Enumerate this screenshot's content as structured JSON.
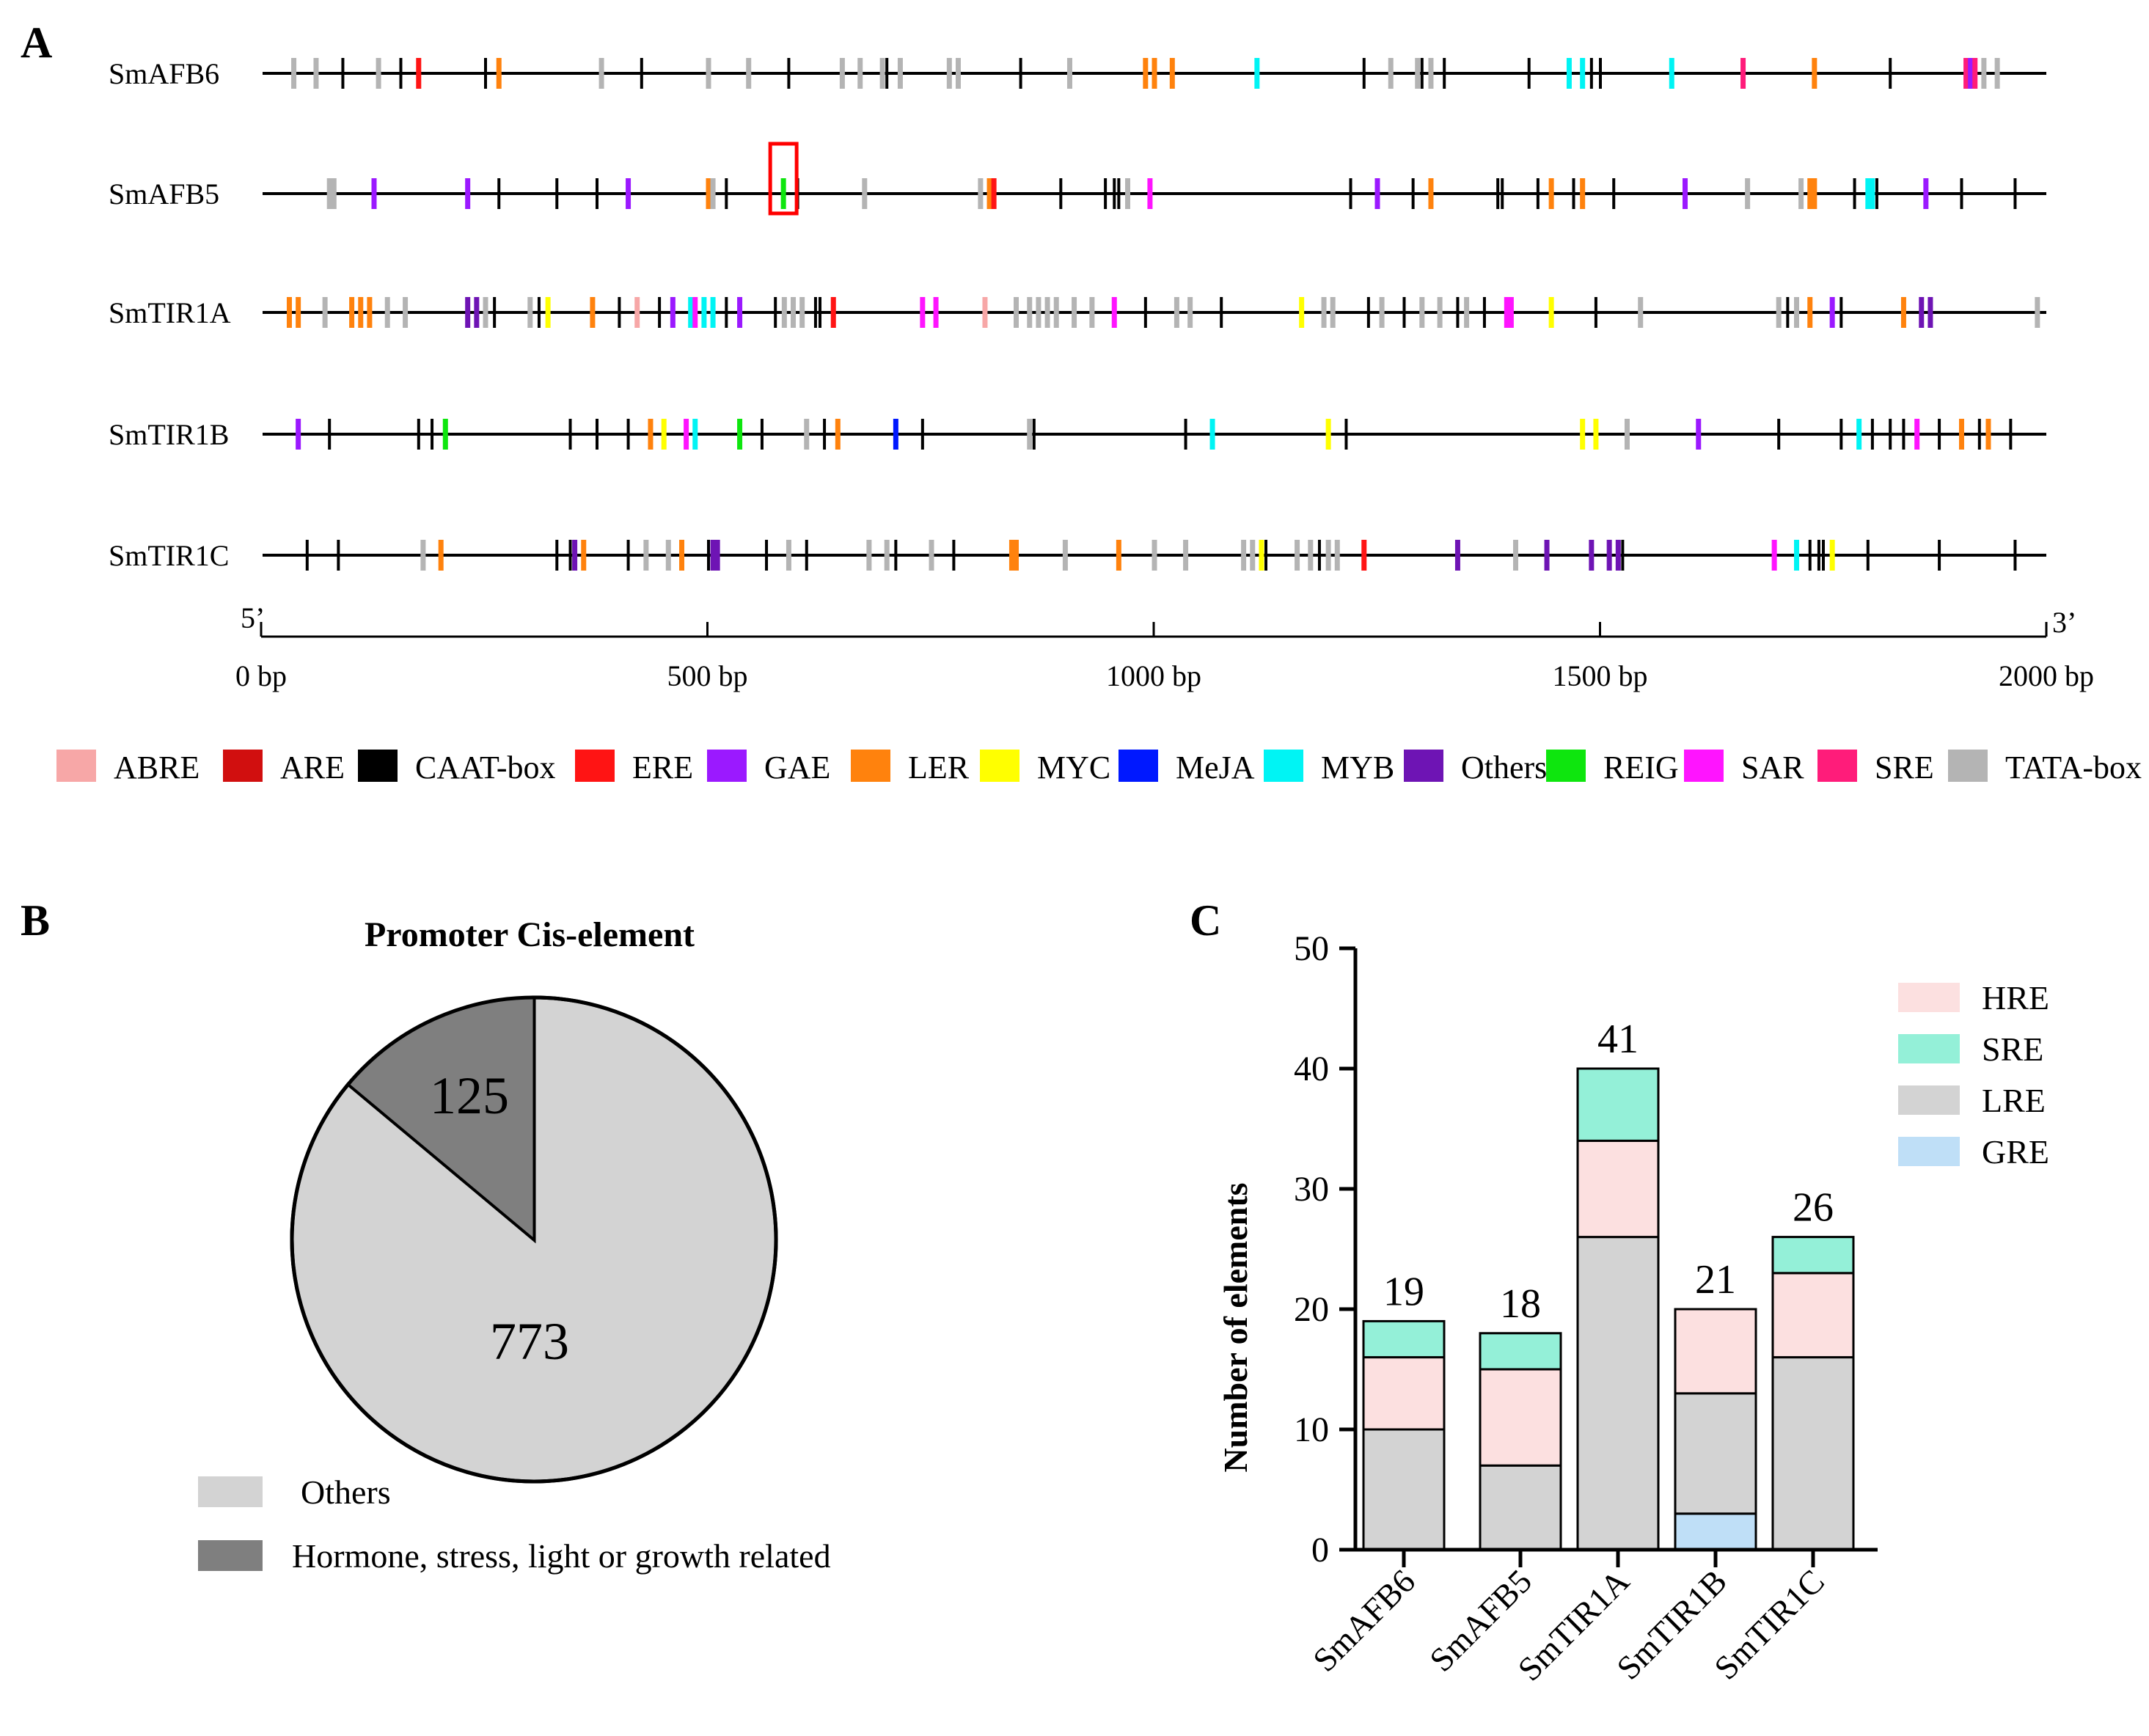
{
  "panel_letters": {
    "a": "A",
    "b": "B",
    "c": "C"
  },
  "element_colors": {
    "ABRE": "#f7a7a7",
    "ARE": "#d10f0f",
    "CAAT-box": "#000000",
    "ERE": "#ff1414",
    "GAE": "#9b19ff",
    "LER": "#ff820d",
    "MYC": "#ffff00",
    "MeJA": "#0018ff",
    "MYB": "#00f4f4",
    "Others": "#6e14b4",
    "REIG": "#0ee60e",
    "SAR": "#ff14ff",
    "SRE": "#ff1c7a",
    "TATA-box": "#b4b4b4"
  },
  "panel_a": {
    "axis": {
      "start_label": "5’",
      "end_label": "3’",
      "max_bp": 2000,
      "tick_labels": [
        "0 bp",
        "500 bp",
        "1000 bp",
        "1500 bp",
        "2000 bp"
      ],
      "tick_values": [
        0,
        500,
        1000,
        1500,
        2000
      ]
    },
    "legend": [
      "ABRE",
      "ARE",
      "CAAT-box",
      "ERE",
      "GAE",
      "LER",
      "MYC",
      "MeJA",
      "MYB",
      "Others",
      "REIG",
      "SAR",
      "SRE",
      "TATA-box"
    ],
    "highlight": {
      "gene": "SmAFB5",
      "bp": 584
    },
    "genes": [
      {
        "name": "SmAFB6",
        "length": 2000,
        "elements": [
          [
            35,
            "TATA-box"
          ],
          [
            60,
            "TATA-box"
          ],
          [
            90,
            "CAAT-box"
          ],
          [
            130,
            "TATA-box"
          ],
          [
            155,
            "CAAT-box"
          ],
          [
            175,
            "ERE"
          ],
          [
            250,
            "CAAT-box"
          ],
          [
            265,
            "LER"
          ],
          [
            380,
            "TATA-box"
          ],
          [
            425,
            "CAAT-box"
          ],
          [
            500,
            "TATA-box"
          ],
          [
            545,
            "TATA-box"
          ],
          [
            590,
            "CAAT-box"
          ],
          [
            650,
            "TATA-box"
          ],
          [
            670,
            "TATA-box"
          ],
          [
            695,
            "TATA-box"
          ],
          [
            700,
            "CAAT-box"
          ],
          [
            715,
            "TATA-box"
          ],
          [
            770,
            "TATA-box"
          ],
          [
            780,
            "TATA-box"
          ],
          [
            850,
            "CAAT-box"
          ],
          [
            905,
            "TATA-box"
          ],
          [
            990,
            "LER"
          ],
          [
            1000,
            "LER"
          ],
          [
            1020,
            "LER"
          ],
          [
            1115,
            "MYB"
          ],
          [
            1235,
            "CAAT-box"
          ],
          [
            1265,
            "TATA-box"
          ],
          [
            1295,
            "TATA-box"
          ],
          [
            1300,
            "CAAT-box"
          ],
          [
            1310,
            "TATA-box"
          ],
          [
            1325,
            "CAAT-box"
          ],
          [
            1420,
            "CAAT-box"
          ],
          [
            1465,
            "MYB"
          ],
          [
            1480,
            "MYB"
          ],
          [
            1490,
            "CAAT-box"
          ],
          [
            1500,
            "CAAT-box"
          ],
          [
            1580,
            "MYB"
          ],
          [
            1660,
            "SRE"
          ],
          [
            1740,
            "LER"
          ],
          [
            1825,
            "CAAT-box"
          ],
          [
            1910,
            "SRE"
          ],
          [
            1915,
            "GAE"
          ],
          [
            1920,
            "SRE"
          ],
          [
            1930,
            "TATA-box"
          ],
          [
            1945,
            "TATA-box"
          ]
        ]
      },
      {
        "name": "SmAFB5",
        "length": 2000,
        "elements": [
          [
            75,
            "TATA-box"
          ],
          [
            80,
            "TATA-box"
          ],
          [
            125,
            "GAE"
          ],
          [
            230,
            "GAE"
          ],
          [
            265,
            "CAAT-box"
          ],
          [
            330,
            "CAAT-box"
          ],
          [
            375,
            "CAAT-box"
          ],
          [
            410,
            "GAE"
          ],
          [
            500,
            "LER"
          ],
          [
            505,
            "TATA-box"
          ],
          [
            520,
            "CAAT-box"
          ],
          [
            584,
            "REIG"
          ],
          [
            600,
            "CAAT-box"
          ],
          [
            675,
            "TATA-box"
          ],
          [
            805,
            "TATA-box"
          ],
          [
            815,
            "LER"
          ],
          [
            820,
            "ERE"
          ],
          [
            895,
            "CAAT-box"
          ],
          [
            945,
            "CAAT-box"
          ],
          [
            955,
            "CAAT-box"
          ],
          [
            960,
            "CAAT-box"
          ],
          [
            970,
            "TATA-box"
          ],
          [
            995,
            "SAR"
          ],
          [
            1220,
            "CAAT-box"
          ],
          [
            1250,
            "GAE"
          ],
          [
            1290,
            "CAAT-box"
          ],
          [
            1310,
            "LER"
          ],
          [
            1385,
            "CAAT-box"
          ],
          [
            1390,
            "CAAT-box"
          ],
          [
            1430,
            "CAAT-box"
          ],
          [
            1445,
            "LER"
          ],
          [
            1470,
            "CAAT-box"
          ],
          [
            1480,
            "LER"
          ],
          [
            1515,
            "CAAT-box"
          ],
          [
            1595,
            "GAE"
          ],
          [
            1665,
            "TATA-box"
          ],
          [
            1725,
            "TATA-box"
          ],
          [
            1735,
            "LER"
          ],
          [
            1740,
            "LER"
          ],
          [
            1785,
            "CAAT-box"
          ],
          [
            1800,
            "MYB"
          ],
          [
            1805,
            "MYB"
          ],
          [
            1810,
            "CAAT-box"
          ],
          [
            1865,
            "GAE"
          ],
          [
            1905,
            "CAAT-box"
          ],
          [
            1965,
            "CAAT-box"
          ]
        ]
      },
      {
        "name": "SmTIR1A",
        "length": 2000,
        "elements": [
          [
            30,
            "LER"
          ],
          [
            40,
            "LER"
          ],
          [
            70,
            "TATA-box"
          ],
          [
            100,
            "LER"
          ],
          [
            110,
            "LER"
          ],
          [
            120,
            "LER"
          ],
          [
            140,
            "TATA-box"
          ],
          [
            160,
            "TATA-box"
          ],
          [
            230,
            "Others"
          ],
          [
            240,
            "Others"
          ],
          [
            250,
            "TATA-box"
          ],
          [
            260,
            "CAAT-box"
          ],
          [
            300,
            "TATA-box"
          ],
          [
            310,
            "CAAT-box"
          ],
          [
            320,
            "MYC"
          ],
          [
            370,
            "LER"
          ],
          [
            400,
            "CAAT-box"
          ],
          [
            420,
            "ABRE"
          ],
          [
            445,
            "CAAT-box"
          ],
          [
            460,
            "GAE"
          ],
          [
            480,
            "MYB"
          ],
          [
            485,
            "SAR"
          ],
          [
            495,
            "MYB"
          ],
          [
            505,
            "MYB"
          ],
          [
            520,
            "CAAT-box"
          ],
          [
            535,
            "GAE"
          ],
          [
            575,
            "CAAT-box"
          ],
          [
            585,
            "TATA-box"
          ],
          [
            595,
            "TATA-box"
          ],
          [
            605,
            "TATA-box"
          ],
          [
            620,
            "CAAT-box"
          ],
          [
            625,
            "CAAT-box"
          ],
          [
            640,
            "ERE"
          ],
          [
            740,
            "SAR"
          ],
          [
            755,
            "SAR"
          ],
          [
            810,
            "ABRE"
          ],
          [
            845,
            "TATA-box"
          ],
          [
            860,
            "TATA-box"
          ],
          [
            870,
            "TATA-box"
          ],
          [
            880,
            "TATA-box"
          ],
          [
            890,
            "TATA-box"
          ],
          [
            910,
            "TATA-box"
          ],
          [
            930,
            "TATA-box"
          ],
          [
            955,
            "SAR"
          ],
          [
            990,
            "CAAT-box"
          ],
          [
            1025,
            "TATA-box"
          ],
          [
            1040,
            "TATA-box"
          ],
          [
            1075,
            "CAAT-box"
          ],
          [
            1165,
            "MYC"
          ],
          [
            1190,
            "TATA-box"
          ],
          [
            1200,
            "TATA-box"
          ],
          [
            1240,
            "CAAT-box"
          ],
          [
            1255,
            "TATA-box"
          ],
          [
            1280,
            "CAAT-box"
          ],
          [
            1300,
            "TATA-box"
          ],
          [
            1320,
            "TATA-box"
          ],
          [
            1340,
            "CAAT-box"
          ],
          [
            1350,
            "TATA-box"
          ],
          [
            1370,
            "CAAT-box"
          ],
          [
            1395,
            "SAR"
          ],
          [
            1400,
            "SAR"
          ],
          [
            1445,
            "MYC"
          ],
          [
            1495,
            "CAAT-box"
          ],
          [
            1545,
            "TATA-box"
          ],
          [
            1700,
            "TATA-box"
          ],
          [
            1710,
            "CAAT-box"
          ],
          [
            1720,
            "TATA-box"
          ],
          [
            1735,
            "LER"
          ],
          [
            1760,
            "GAE"
          ],
          [
            1770,
            "CAAT-box"
          ],
          [
            1840,
            "LER"
          ],
          [
            1860,
            "Others"
          ],
          [
            1870,
            "Others"
          ],
          [
            1990,
            "TATA-box"
          ]
        ]
      },
      {
        "name": "SmTIR1B",
        "length": 2000,
        "elements": [
          [
            40,
            "GAE"
          ],
          [
            75,
            "CAAT-box"
          ],
          [
            175,
            "CAAT-box"
          ],
          [
            190,
            "CAAT-box"
          ],
          [
            205,
            "REIG"
          ],
          [
            345,
            "CAAT-box"
          ],
          [
            375,
            "CAAT-box"
          ],
          [
            410,
            "CAAT-box"
          ],
          [
            435,
            "LER"
          ],
          [
            450,
            "MYC"
          ],
          [
            475,
            "SAR"
          ],
          [
            485,
            "MYB"
          ],
          [
            535,
            "REIG"
          ],
          [
            560,
            "CAAT-box"
          ],
          [
            610,
            "TATA-box"
          ],
          [
            630,
            "CAAT-box"
          ],
          [
            645,
            "LER"
          ],
          [
            710,
            "MeJA"
          ],
          [
            740,
            "CAAT-box"
          ],
          [
            860,
            "TATA-box"
          ],
          [
            865,
            "CAAT-box"
          ],
          [
            1035,
            "CAAT-box"
          ],
          [
            1065,
            "MYB"
          ],
          [
            1195,
            "MYC"
          ],
          [
            1215,
            "CAAT-box"
          ],
          [
            1480,
            "MYC"
          ],
          [
            1495,
            "MYC"
          ],
          [
            1530,
            "TATA-box"
          ],
          [
            1610,
            "GAE"
          ],
          [
            1700,
            "CAAT-box"
          ],
          [
            1770,
            "CAAT-box"
          ],
          [
            1790,
            "MYB"
          ],
          [
            1805,
            "CAAT-box"
          ],
          [
            1825,
            "CAAT-box"
          ],
          [
            1840,
            "CAAT-box"
          ],
          [
            1855,
            "SAR"
          ],
          [
            1880,
            "CAAT-box"
          ],
          [
            1905,
            "LER"
          ],
          [
            1925,
            "CAAT-box"
          ],
          [
            1935,
            "LER"
          ],
          [
            1960,
            "CAAT-box"
          ]
        ]
      },
      {
        "name": "SmTIR1C",
        "length": 2000,
        "elements": [
          [
            50,
            "CAAT-box"
          ],
          [
            85,
            "CAAT-box"
          ],
          [
            180,
            "TATA-box"
          ],
          [
            200,
            "LER"
          ],
          [
            330,
            "CAAT-box"
          ],
          [
            345,
            "CAAT-box"
          ],
          [
            350,
            "Others"
          ],
          [
            360,
            "LER"
          ],
          [
            410,
            "CAAT-box"
          ],
          [
            430,
            "TATA-box"
          ],
          [
            455,
            "TATA-box"
          ],
          [
            470,
            "LER"
          ],
          [
            500,
            "CAAT-box"
          ],
          [
            505,
            "Others"
          ],
          [
            510,
            "Others"
          ],
          [
            565,
            "CAAT-box"
          ],
          [
            590,
            "TATA-box"
          ],
          [
            610,
            "CAAT-box"
          ],
          [
            680,
            "TATA-box"
          ],
          [
            700,
            "TATA-box"
          ],
          [
            710,
            "CAAT-box"
          ],
          [
            750,
            "TATA-box"
          ],
          [
            775,
            "CAAT-box"
          ],
          [
            840,
            "LER"
          ],
          [
            845,
            "LER"
          ],
          [
            900,
            "TATA-box"
          ],
          [
            960,
            "LER"
          ],
          [
            1000,
            "TATA-box"
          ],
          [
            1035,
            "TATA-box"
          ],
          [
            1100,
            "TATA-box"
          ],
          [
            1110,
            "TATA-box"
          ],
          [
            1120,
            "MYC"
          ],
          [
            1125,
            "CAAT-box"
          ],
          [
            1160,
            "TATA-box"
          ],
          [
            1175,
            "TATA-box"
          ],
          [
            1185,
            "CAAT-box"
          ],
          [
            1195,
            "TATA-box"
          ],
          [
            1205,
            "TATA-box"
          ],
          [
            1235,
            "ERE"
          ],
          [
            1340,
            "Others"
          ],
          [
            1405,
            "TATA-box"
          ],
          [
            1440,
            "Others"
          ],
          [
            1490,
            "Others"
          ],
          [
            1510,
            "Others"
          ],
          [
            1520,
            "Others"
          ],
          [
            1525,
            "CAAT-box"
          ],
          [
            1695,
            "SAR"
          ],
          [
            1720,
            "MYB"
          ],
          [
            1735,
            "CAAT-box"
          ],
          [
            1745,
            "CAAT-box"
          ],
          [
            1750,
            "CAAT-box"
          ],
          [
            1760,
            "MYC"
          ],
          [
            1800,
            "CAAT-box"
          ],
          [
            1880,
            "CAAT-box"
          ],
          [
            1965,
            "CAAT-box"
          ]
        ]
      }
    ]
  },
  "chart_data": [
    {
      "type": "pie",
      "title": "Promoter Cis-element",
      "labels": [
        "Others",
        "Hormone, stress, light or growth related"
      ],
      "values": [
        773,
        125
      ],
      "colors": [
        "#d3d3d3",
        "#7f7f7f"
      ],
      "legend_position": "bottom-left"
    },
    {
      "type": "bar",
      "stacked": true,
      "categories": [
        "SmAFB6",
        "SmAFB5",
        "SmTIR1A",
        "SmTIR1B",
        "SmTIR1C"
      ],
      "series": [
        {
          "name": "GRE",
          "color": "#bfdff7",
          "values": [
            0,
            0,
            0,
            3,
            0
          ]
        },
        {
          "name": "LRE",
          "color": "#d3d3d3",
          "values": [
            10,
            7,
            26,
            10,
            16
          ]
        },
        {
          "name": "HRE",
          "color": "#fce0e0",
          "values": [
            6,
            8,
            8,
            7,
            7
          ]
        },
        {
          "name": "SRE",
          "color": "#94f0d8",
          "values": [
            3,
            3,
            6,
            0,
            3
          ]
        }
      ],
      "totals": [
        "19",
        "18",
        "41",
        "21",
        "26"
      ],
      "legend_order": [
        "HRE",
        "SRE",
        "LRE",
        "GRE"
      ],
      "xlabel": "",
      "ylabel": "Number of elements",
      "ylim": [
        0,
        50
      ],
      "yticks": [
        0,
        10,
        20,
        30,
        40,
        50
      ],
      "legend_position": "top-right"
    }
  ]
}
